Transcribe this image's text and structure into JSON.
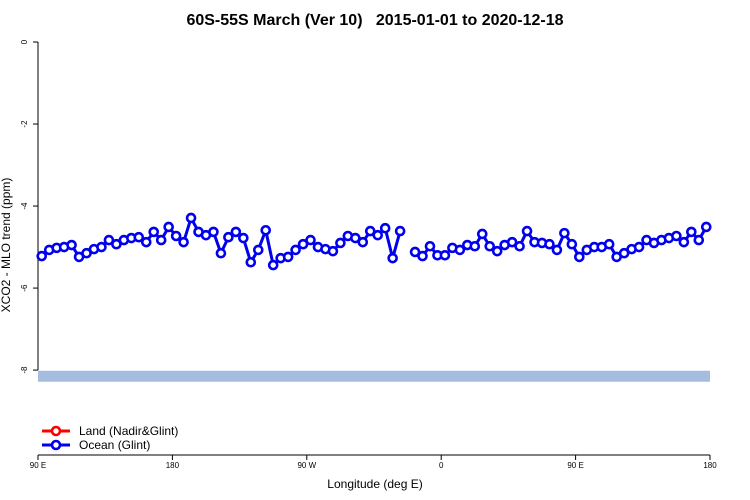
{
  "chart_data": {
    "type": "line",
    "title": "60S-55S March (Ver 10)   2015-01-01 to 2020-12-18",
    "xlabel": "Longitude (deg E)",
    "ylabel": "XCO2 - MLO trend (ppm)",
    "xlim": [
      90,
      540
    ],
    "xticks": [
      {
        "value": 90,
        "label": "90 E"
      },
      180,
      {
        "value": 270,
        "label": "90 W"
      },
      {
        "value": 360,
        "label": "0"
      },
      {
        "value": 450,
        "label": "90 E"
      },
      {
        "value": 540,
        "label": "180"
      }
    ],
    "ylim": [
      -10.07,
      0
    ],
    "yticks": [
      0,
      -2,
      -4,
      -6,
      -8
    ],
    "legend": "bottom-left",
    "reference_lines": [
      {
        "value": -8.15,
        "color": "#a6bcdf"
      }
    ],
    "x": [
      92.5,
      97.5,
      102.5,
      107.5,
      112.5,
      117.5,
      122.5,
      127.5,
      132.5,
      137.5,
      142.5,
      147.5,
      152.5,
      157.5,
      162.5,
      167.5,
      172.5,
      177.5,
      182.5,
      187.5,
      192.5,
      197.5,
      202.5,
      207.5,
      212.5,
      217.5,
      222.5,
      227.5,
      232.5,
      237.5,
      242.5,
      247.5,
      252.5,
      257.5,
      262.5,
      267.5,
      272.5,
      277.5,
      282.5,
      287.5,
      292.5,
      297.5,
      302.5,
      307.5,
      312.5,
      317.5,
      322.5,
      327.5,
      332.5,
      337.5,
      342.5,
      347.5,
      352.5,
      357.5,
      362.5,
      367.5,
      372.5,
      377.5,
      382.5,
      387.5,
      392.5,
      397.5,
      402.5,
      407.5,
      412.5,
      417.5,
      422.5,
      427.5,
      432.5,
      437.5,
      442.5,
      447.5,
      452.5,
      457.5,
      462.5,
      467.5,
      472.5,
      477.5,
      482.5,
      487.5,
      492.5,
      497.5,
      502.5,
      507.5,
      512.5,
      517.5,
      522.5,
      527.5,
      532.5,
      537.5
    ],
    "series": [
      {
        "name": "Land (Nadir&Glint)",
        "color": "#ff0000",
        "values": [
          null,
          null,
          null,
          null,
          null,
          null,
          null,
          null,
          null,
          null,
          null,
          null,
          null,
          null,
          null,
          null,
          null,
          null,
          null,
          null,
          null,
          null,
          null,
          null,
          null,
          null,
          null,
          null,
          null,
          null,
          null,
          null,
          null,
          null,
          null,
          null,
          null,
          null,
          null,
          null,
          null,
          null,
          null,
          null,
          null,
          null,
          null,
          null,
          null,
          null,
          null,
          null,
          null,
          null,
          null,
          null,
          null,
          null,
          null,
          null,
          null,
          null,
          null,
          null,
          null,
          null,
          null,
          null,
          null,
          null,
          null,
          null,
          null,
          null,
          null,
          null,
          null,
          null,
          null,
          null,
          null,
          null,
          null,
          null,
          null,
          null,
          null,
          null,
          null,
          null
        ]
      },
      {
        "name": "Ocean (Glint)",
        "color": "#0000ee",
        "values": [
          -5.22,
          -5.07,
          -5.02,
          -5.0,
          -4.95,
          -5.24,
          -5.15,
          -5.05,
          -5.0,
          -4.83,
          -4.93,
          -4.83,
          -4.78,
          -4.76,
          -4.88,
          -4.63,
          -4.83,
          -4.51,
          -4.73,
          -4.88,
          -4.29,
          -4.63,
          -4.71,
          -4.63,
          -5.15,
          -4.76,
          -4.63,
          -4.78,
          -5.37,
          -5.07,
          -4.59,
          -5.44,
          -5.27,
          -5.24,
          -5.07,
          -4.93,
          -4.83,
          -5.0,
          -5.05,
          -5.1,
          -4.9,
          -4.73,
          -4.78,
          -4.88,
          -4.61,
          -4.71,
          -4.54,
          -5.27,
          -4.61,
          null,
          -5.12,
          -5.22,
          -4.98,
          -5.2,
          -5.2,
          -5.02,
          -5.07,
          -4.95,
          -4.98,
          -4.68,
          -4.98,
          -5.1,
          -4.95,
          -4.88,
          -4.98,
          -4.61,
          -4.88,
          -4.9,
          -4.93,
          -5.07,
          -4.66,
          -4.93,
          -5.24,
          -5.07,
          -5.0,
          -5.0,
          -4.93,
          -5.24,
          -5.15,
          -5.05,
          -5.0,
          -4.83,
          -4.9,
          -4.83,
          -4.78,
          -4.73,
          -4.88,
          -4.63,
          -4.83,
          -4.51
        ]
      }
    ]
  }
}
